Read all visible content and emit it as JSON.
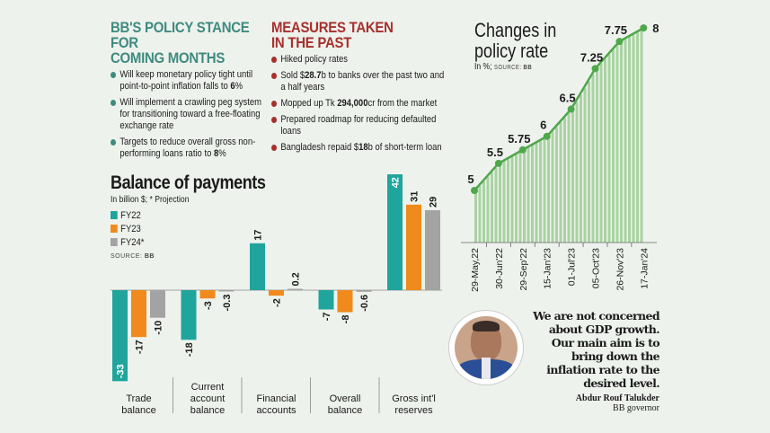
{
  "policy_stance": {
    "title_line1": "BB'S POLICY STANCE FOR",
    "title_line2": "COMING MONTHS",
    "bullet_color": "#3f8a7f",
    "items": [
      {
        "pre": "Will keep monetary policy tight until point-to-point inflation falls to ",
        "bold": "6",
        "post": "%"
      },
      {
        "pre": "Will implement a crawling peg system for transitioning toward a free-floating exchange rate",
        "bold": "",
        "post": ""
      },
      {
        "pre": "Targets to reduce overall gross non-performing loans ratio to ",
        "bold": "8",
        "post": "%"
      }
    ]
  },
  "measures": {
    "title_line1": "MEASURES TAKEN",
    "title_line2": "IN THE PAST",
    "bullet_color": "#a8302c",
    "items": [
      {
        "pre": "Hiked policy rates",
        "bold": "",
        "post": ""
      },
      {
        "pre": "Sold $",
        "bold": "28.7",
        "post": "b to banks over the past two and a half years"
      },
      {
        "pre": "Mopped up Tk ",
        "bold": "294,000",
        "post": "cr from the market"
      },
      {
        "pre": "Prepared roadmap for reducing defaulted loans",
        "bold": "",
        "post": ""
      },
      {
        "pre": "Bangladesh repaid $",
        "bold": "18",
        "post": "b of short-term loan"
      }
    ]
  },
  "quote": {
    "text": "We are not concerned about GDP growth. Our main aim is to bring down the inflation rate to the desired level.",
    "author": "Abdur Rouf Talukder",
    "role": "BB governor"
  },
  "chart_data": [
    {
      "type": "bar",
      "title": "Balance of payments",
      "subtitle": "In billion $; * Projection",
      "source_label": "SOURCE:",
      "source": "BB",
      "legend_placement": "top-left",
      "categories": [
        "Trade balance",
        "Current account balance",
        "Financial accounts",
        "Overall balance",
        "Gross int'l reserves"
      ],
      "category_lines": [
        [
          "Trade",
          "balance"
        ],
        [
          "Current",
          "account",
          "balance"
        ],
        [
          "Financial",
          "accounts"
        ],
        [
          "Overall",
          "balance"
        ],
        [
          "Gross int'l",
          "reserves"
        ]
      ],
      "series": [
        {
          "name": "FY22",
          "color": "#1fa59c",
          "values": [
            -33,
            -18,
            17,
            -7,
            42
          ],
          "labels": [
            "-33",
            "-18",
            "17",
            "-7",
            "42"
          ]
        },
        {
          "name": "FY23",
          "color": "#f08a1c",
          "values": [
            -17,
            -3,
            -2,
            -8,
            31
          ],
          "labels": [
            "-17",
            "-3",
            "-2",
            "-8",
            "31"
          ]
        },
        {
          "name": "FY24*",
          "color": "#a3a3a3",
          "values": [
            -10,
            -0.3,
            0.2,
            -0.6,
            29
          ],
          "labels": [
            "-10",
            "-0.3",
            "0.2",
            "-0.6",
            "29"
          ]
        }
      ]
    },
    {
      "type": "area",
      "title_line1": "Changes in",
      "title_line2": "policy rate",
      "subtitle": "In %;",
      "source_label": "SOURCE:",
      "source": "BB",
      "line_color": "#4ea84a",
      "fill_color": "#a9d3a2",
      "x": [
        "29-May,22",
        "30-Jun'22",
        "29-Sep'22",
        "15-Jan'23",
        "01-Jul'23",
        "05-Oct'23",
        "26-Nov'23",
        "17-Jan'24"
      ],
      "values": [
        5,
        5.5,
        5.75,
        6,
        6.5,
        7.25,
        7.75,
        8
      ],
      "labels": [
        "5",
        "5.5",
        "5.75",
        "6",
        "6.5",
        "7.25",
        "7.75",
        "8"
      ]
    }
  ]
}
